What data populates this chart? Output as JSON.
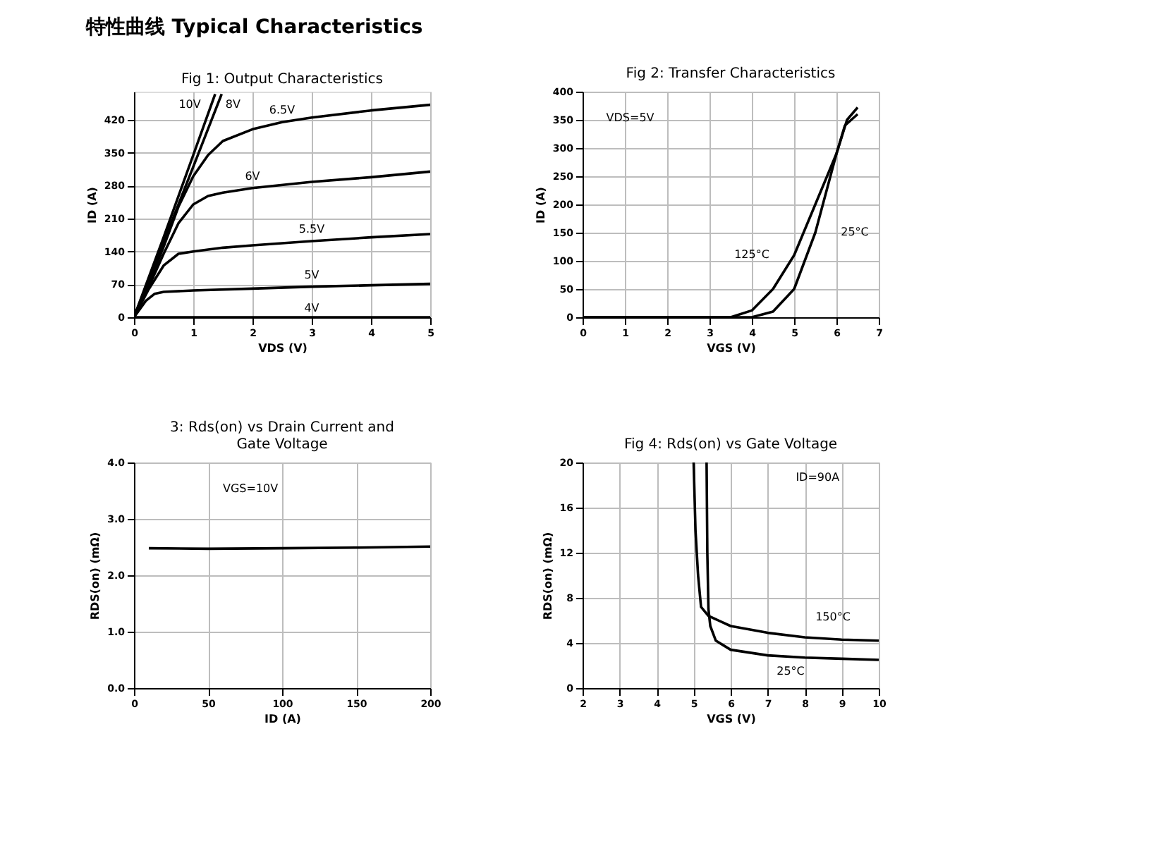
{
  "chart_data": [
    {
      "type": "line",
      "title": "Fig 1: Output Characteristics",
      "xlabel": "VDS (V)",
      "ylabel": "ID (A)",
      "xlim": [
        0,
        5
      ],
      "ylim": [
        0,
        480
      ],
      "xticks": [
        0,
        1,
        2,
        3,
        4,
        5
      ],
      "yticks": [
        0,
        70,
        140,
        210,
        280,
        350,
        420
      ],
      "grid": true,
      "legend": false,
      "annotations": [
        "特性曲线   Typical Characteristics"
      ],
      "series": [
        {
          "name": "10V",
          "color": "#000000",
          "x": [
            0,
            0.5,
            1.0,
            1.37
          ],
          "values": [
            0,
            170,
            345,
            475
          ]
        },
        {
          "name": "8V",
          "color": "#000000",
          "x": [
            0,
            0.5,
            1.0,
            1.48
          ],
          "values": [
            0,
            160,
            320,
            475
          ]
        },
        {
          "name": "6.5V",
          "color": "#000000",
          "x": [
            0,
            0.25,
            0.5,
            0.75,
            1.0,
            1.25,
            1.5,
            2.0,
            2.5,
            3,
            4,
            5
          ],
          "values": [
            0,
            70,
            150,
            235,
            300,
            345,
            375,
            400,
            415,
            425,
            440,
            452
          ]
        },
        {
          "name": "6V",
          "color": "#000000",
          "x": [
            0,
            0.25,
            0.5,
            0.75,
            1.0,
            1.25,
            1.5,
            2,
            3,
            4,
            5
          ],
          "values": [
            0,
            65,
            135,
            200,
            240,
            258,
            265,
            275,
            288,
            298,
            310
          ]
        },
        {
          "name": "5.5V",
          "color": "#000000",
          "x": [
            0,
            0.25,
            0.5,
            0.75,
            1,
            1.5,
            2,
            3,
            4,
            5
          ],
          "values": [
            0,
            60,
            110,
            135,
            140,
            148,
            153,
            162,
            170,
            177
          ]
        },
        {
          "name": "5V",
          "color": "#000000",
          "x": [
            0,
            0.2,
            0.35,
            0.5,
            1,
            2,
            3,
            4,
            5
          ],
          "values": [
            0,
            35,
            50,
            54,
            57,
            61,
            65,
            68,
            71
          ]
        },
        {
          "name": "4V",
          "color": "#000000",
          "x": [
            0,
            3,
            5
          ],
          "values": [
            0,
            0,
            0
          ]
        }
      ]
    },
    {
      "type": "line",
      "title": "Fig 2: Transfer Characteristics",
      "xlabel": "VGS (V)",
      "ylabel": "ID (A)",
      "xlim": [
        0,
        7
      ],
      "ylim": [
        0,
        400
      ],
      "xticks": [
        0,
        1,
        2,
        3,
        4,
        5,
        6,
        7
      ],
      "yticks": [
        0,
        50,
        100,
        150,
        200,
        250,
        300,
        350,
        400
      ],
      "grid": true,
      "legend": false,
      "annotations": [
        "VDS=5V"
      ],
      "series": [
        {
          "name": "25°C",
          "color": "#000000",
          "x": [
            0,
            4,
            4.5,
            5,
            5.5,
            6,
            6.2,
            6.5
          ],
          "values": [
            0,
            0,
            10,
            50,
            150,
            290,
            340,
            360
          ]
        },
        {
          "name": "125°C",
          "color": "#000000",
          "x": [
            0,
            3.5,
            4,
            4.5,
            5,
            5.5,
            6,
            6.25,
            6.5
          ],
          "values": [
            0,
            0,
            12,
            50,
            110,
            200,
            290,
            350,
            372
          ]
        }
      ]
    },
    {
      "type": "line",
      "title": "3: Rds(on) vs Drain Current and Gate Voltage",
      "xlabel": "ID (A)",
      "ylabel": "RDS(on) (mΩ)",
      "xlim": [
        0,
        200
      ],
      "ylim": [
        0,
        4
      ],
      "xticks": [
        0,
        50,
        100,
        150,
        200
      ],
      "yticks": [
        {
          "value": 0,
          "label": "0.0"
        },
        {
          "value": 1,
          "label": "1.0"
        },
        {
          "value": 2,
          "label": "2.0"
        },
        {
          "value": 3,
          "label": "3.0"
        },
        {
          "value": 4,
          "label": "4.0"
        }
      ],
      "grid": true,
      "legend": false,
      "annotations": [
        "VGS=10V"
      ],
      "series": [
        {
          "color": "#000000",
          "x": [
            10,
            50,
            100,
            150,
            200
          ],
          "values": [
            2.48,
            2.47,
            2.48,
            2.49,
            2.51
          ]
        }
      ]
    },
    {
      "type": "line",
      "title": "Fig 4: Rds(on) vs Gate Voltage",
      "xlabel": "VGS (V)",
      "ylabel": "RDS(on) (mΩ)",
      "xlim": [
        2,
        10
      ],
      "ylim": [
        0,
        20
      ],
      "xticks": [
        2,
        3,
        4,
        5,
        6,
        7,
        8,
        9,
        10
      ],
      "yticks": [
        0,
        4,
        8,
        12,
        16,
        20
      ],
      "grid": true,
      "legend": false,
      "annotations": [
        "ID=90A"
      ],
      "series": [
        {
          "name": "25°C",
          "color": "#000000",
          "x": [
            5.35,
            5.37,
            5.4,
            5.45,
            5.6,
            6,
            7,
            8,
            9,
            10
          ],
          "values": [
            20,
            12,
            7,
            5.5,
            4.2,
            3.4,
            2.9,
            2.7,
            2.6,
            2.5
          ]
        },
        {
          "name": "150°C",
          "color": "#000000",
          "x": [
            5.0,
            5.05,
            5.12,
            5.2,
            5.4,
            6,
            7,
            8,
            9,
            10
          ],
          "values": [
            20,
            14,
            10,
            7.2,
            6.4,
            5.5,
            4.9,
            4.5,
            4.3,
            4.2
          ]
        }
      ]
    }
  ]
}
